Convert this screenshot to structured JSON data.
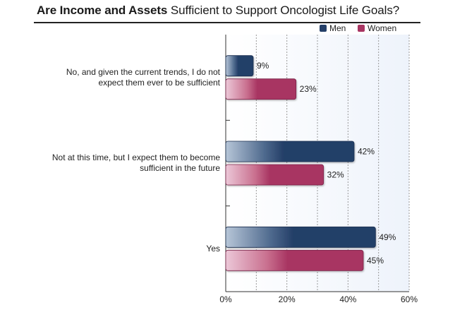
{
  "title": {
    "bold_part": "Are Income and Assets",
    "regular_part": "Sufficient to Support Oncologist Life Goals?"
  },
  "colors": {
    "men": "#243f68",
    "women": "#a83562",
    "plot_bg": "#eef3fb",
    "grid": "#9a9a9a"
  },
  "chart_data": {
    "type": "bar",
    "orientation": "horizontal",
    "title": "Are Income and Assets Sufficient to Support Oncologist Life Goals?",
    "categories": [
      "No, and given the current trends, I do not expect them ever to be sufficient",
      "Not at this time, but I expect them to become sufficient in the future",
      "Yes"
    ],
    "category_lines": [
      [
        "No, and given the current trends, I do not",
        "expect them ever to be sufficient"
      ],
      [
        "Not at this time, but I expect them to become",
        "sufficient in the future"
      ],
      [
        "Yes"
      ]
    ],
    "series": [
      {
        "name": "Men",
        "values": [
          9,
          42,
          49
        ],
        "labels": [
          "9%",
          "42%",
          "49%"
        ]
      },
      {
        "name": "Women",
        "values": [
          23,
          32,
          45
        ],
        "labels": [
          "23%",
          "32%",
          "45%"
        ]
      }
    ],
    "x_ticks": [
      0,
      20,
      40,
      60
    ],
    "x_tick_labels": [
      "0%",
      "20%",
      "40%",
      "60%"
    ],
    "xlim": [
      0,
      60
    ],
    "legend_position": "top-right",
    "grid": true
  }
}
